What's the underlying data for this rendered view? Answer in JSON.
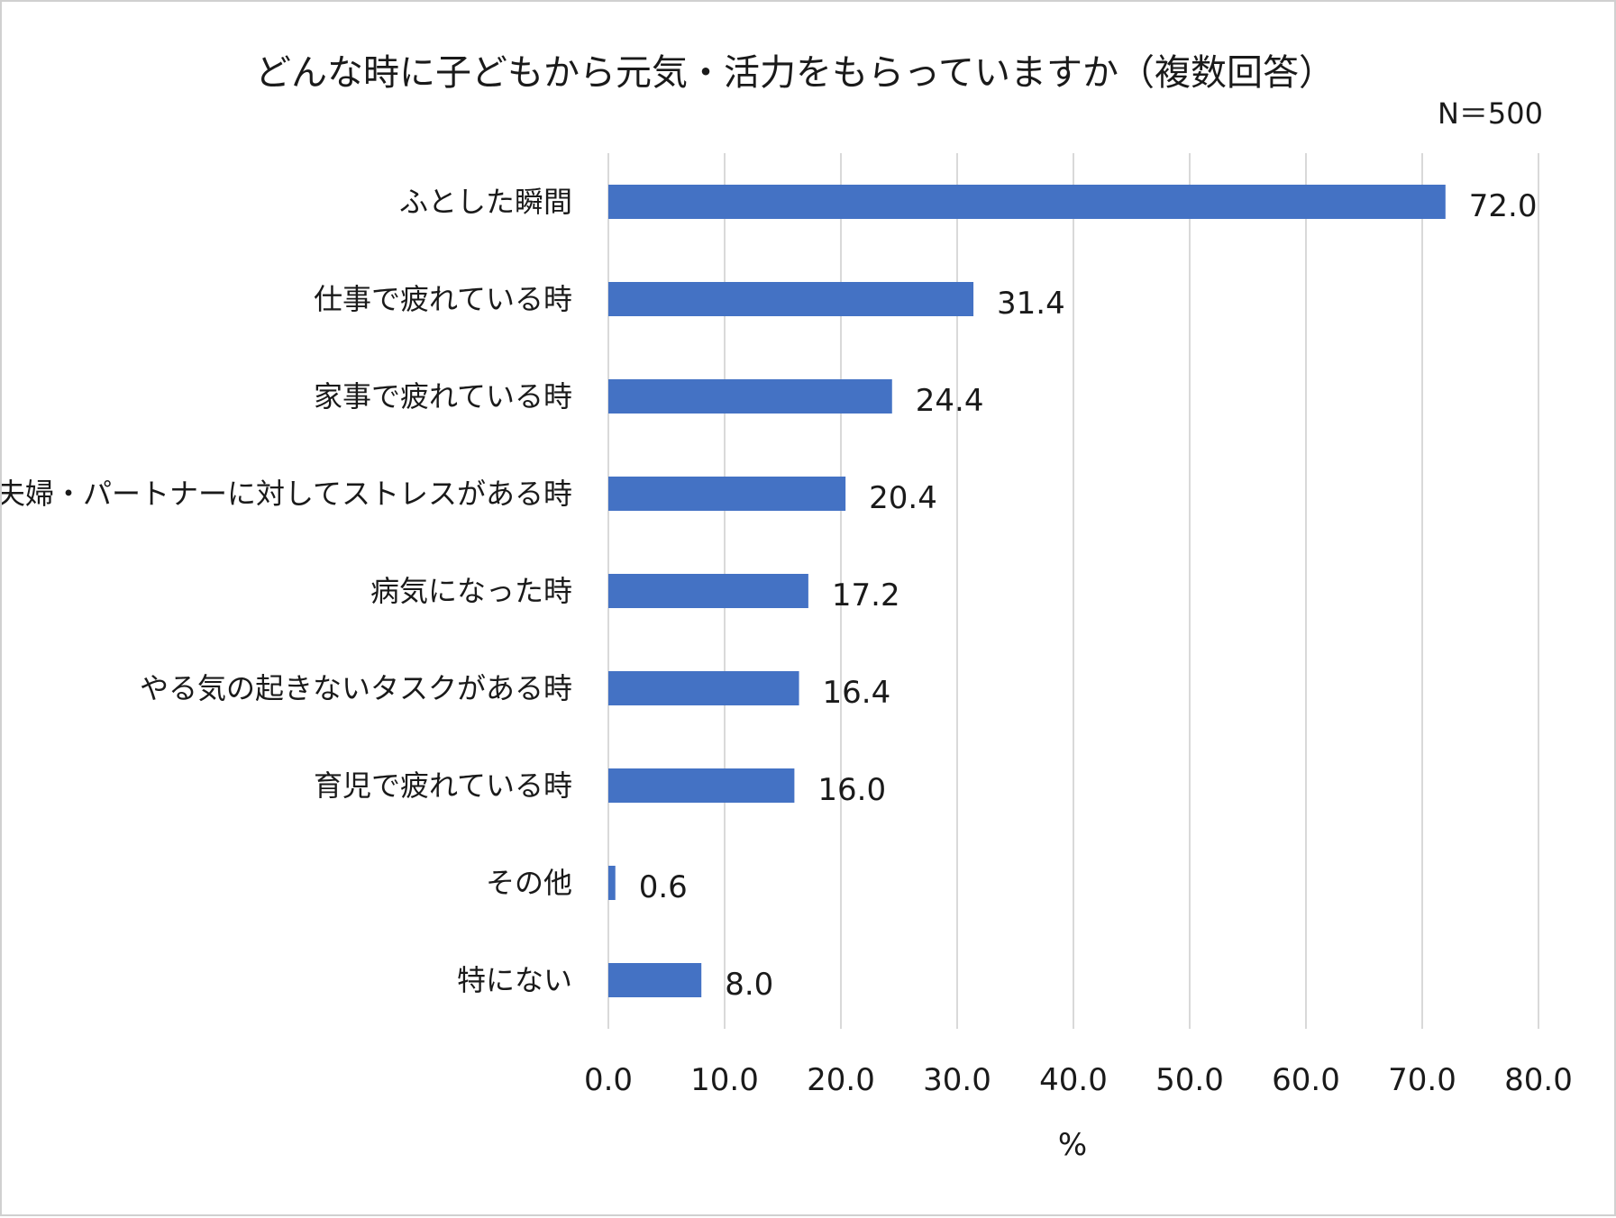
{
  "chart_data": {
    "type": "bar",
    "orientation": "horizontal",
    "title": "どんな時に子どもから元気・活力をもらっていますか（複数回答）",
    "note": "N＝500",
    "categories": [
      "ふとした瞬間",
      "仕事で疲れている時",
      "家事で疲れている時",
      "夫婦・パートナーに対してストレスがある時",
      "病気になった時",
      "やる気の起きないタスクがある時",
      "育児で疲れている時",
      "その他",
      "特にない"
    ],
    "values": [
      72.0,
      31.4,
      24.4,
      20.4,
      17.2,
      16.4,
      16.0,
      0.6,
      8.0
    ],
    "value_labels": [
      "72.0",
      "31.4",
      "24.4",
      "20.4",
      "17.2",
      "16.4",
      "16.0",
      "0.6",
      "8.0"
    ],
    "xlim": [
      0,
      80
    ],
    "xticks": [
      "0.0",
      "10.0",
      "20.0",
      "30.0",
      "40.0",
      "50.0",
      "60.0",
      "70.0",
      "80.0"
    ],
    "xlabel": "%",
    "ylabel": "",
    "grid": true,
    "bar_color": "#4472c4",
    "grid_color": "#d9d9d9"
  }
}
